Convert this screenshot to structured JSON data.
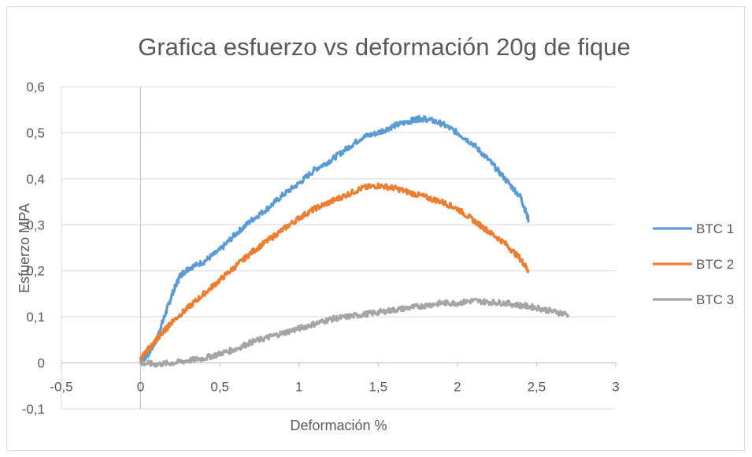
{
  "chart_data": {
    "type": "line",
    "title": "Grafica esfuerzo vs deformación 20g de fique",
    "xlabel": "Deformación %",
    "ylabel": "Esfuerzo MPA",
    "xlim": [
      -0.5,
      3
    ],
    "ylim": [
      -0.1,
      0.6
    ],
    "xticks": [
      "-0,5",
      "0",
      "0,5",
      "1",
      "1,5",
      "2",
      "2,5",
      "3"
    ],
    "xtick_values": [
      -0.5,
      0,
      0.5,
      1,
      1.5,
      2,
      2.5,
      3
    ],
    "yticks": [
      "-0,1",
      "0",
      "0,1",
      "0,2",
      "0,3",
      "0,4",
      "0,5",
      "0,6"
    ],
    "ytick_values": [
      -0.1,
      0,
      0.1,
      0.2,
      0.3,
      0.4,
      0.5,
      0.6
    ],
    "grid": "horizontal",
    "legend_position": "right",
    "series": [
      {
        "name": "BTC 1",
        "color": "#5b9bd5",
        "points": [
          [
            0,
            0
          ],
          [
            0.05,
            0.02
          ],
          [
            0.1,
            0.05
          ],
          [
            0.15,
            0.1
          ],
          [
            0.2,
            0.15
          ],
          [
            0.25,
            0.19
          ],
          [
            0.3,
            0.205
          ],
          [
            0.4,
            0.22
          ],
          [
            0.5,
            0.245
          ],
          [
            0.6,
            0.28
          ],
          [
            0.7,
            0.31
          ],
          [
            0.8,
            0.335
          ],
          [
            0.9,
            0.365
          ],
          [
            1.0,
            0.39
          ],
          [
            1.1,
            0.42
          ],
          [
            1.2,
            0.44
          ],
          [
            1.3,
            0.465
          ],
          [
            1.4,
            0.49
          ],
          [
            1.5,
            0.5
          ],
          [
            1.6,
            0.515
          ],
          [
            1.7,
            0.525
          ],
          [
            1.75,
            0.53
          ],
          [
            1.8,
            0.53
          ],
          [
            1.9,
            0.52
          ],
          [
            2.0,
            0.5
          ],
          [
            2.1,
            0.475
          ],
          [
            2.2,
            0.44
          ],
          [
            2.3,
            0.4
          ],
          [
            2.4,
            0.36
          ],
          [
            2.45,
            0.31
          ]
        ]
      },
      {
        "name": "BTC 2",
        "color": "#ed7d31",
        "points": [
          [
            0,
            0.01
          ],
          [
            0.05,
            0.03
          ],
          [
            0.1,
            0.05
          ],
          [
            0.15,
            0.07
          ],
          [
            0.2,
            0.09
          ],
          [
            0.3,
            0.12
          ],
          [
            0.4,
            0.15
          ],
          [
            0.5,
            0.18
          ],
          [
            0.6,
            0.21
          ],
          [
            0.7,
            0.24
          ],
          [
            0.8,
            0.265
          ],
          [
            0.9,
            0.29
          ],
          [
            1.0,
            0.315
          ],
          [
            1.1,
            0.335
          ],
          [
            1.2,
            0.35
          ],
          [
            1.3,
            0.365
          ],
          [
            1.4,
            0.38
          ],
          [
            1.5,
            0.385
          ],
          [
            1.6,
            0.38
          ],
          [
            1.7,
            0.37
          ],
          [
            1.8,
            0.36
          ],
          [
            1.9,
            0.35
          ],
          [
            2.0,
            0.335
          ],
          [
            2.1,
            0.31
          ],
          [
            2.2,
            0.285
          ],
          [
            2.3,
            0.26
          ],
          [
            2.4,
            0.225
          ],
          [
            2.45,
            0.2
          ]
        ]
      },
      {
        "name": "BTC 3",
        "color": "#a5a5a5",
        "points": [
          [
            0,
            0
          ],
          [
            0.1,
            -0.003
          ],
          [
            0.2,
            0
          ],
          [
            0.3,
            0.005
          ],
          [
            0.4,
            0.01
          ],
          [
            0.5,
            0.02
          ],
          [
            0.6,
            0.03
          ],
          [
            0.7,
            0.045
          ],
          [
            0.8,
            0.055
          ],
          [
            0.9,
            0.065
          ],
          [
            1.0,
            0.075
          ],
          [
            1.1,
            0.085
          ],
          [
            1.2,
            0.095
          ],
          [
            1.3,
            0.1
          ],
          [
            1.4,
            0.105
          ],
          [
            1.5,
            0.11
          ],
          [
            1.6,
            0.115
          ],
          [
            1.7,
            0.12
          ],
          [
            1.8,
            0.125
          ],
          [
            1.9,
            0.13
          ],
          [
            2.0,
            0.13
          ],
          [
            2.1,
            0.135
          ],
          [
            2.2,
            0.132
          ],
          [
            2.3,
            0.13
          ],
          [
            2.4,
            0.125
          ],
          [
            2.5,
            0.12
          ],
          [
            2.6,
            0.112
          ],
          [
            2.7,
            0.105
          ]
        ]
      }
    ]
  }
}
